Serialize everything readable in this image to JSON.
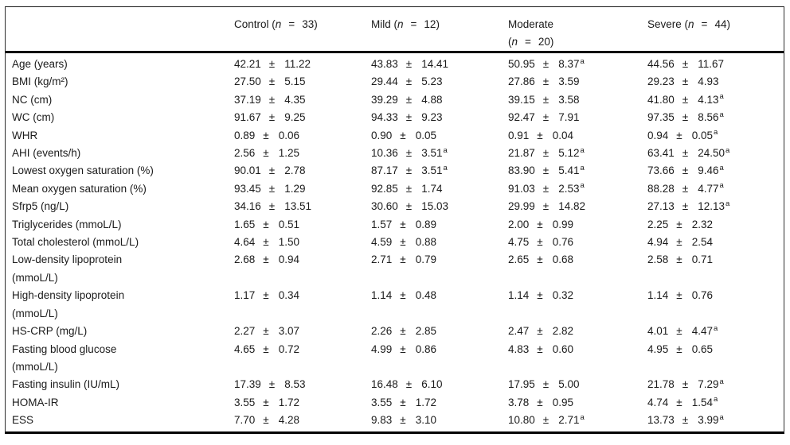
{
  "table": {
    "plus_minus": "±",
    "equals": "=",
    "n_symbol": "n",
    "sig_marker": "a",
    "groups": [
      {
        "name": "Control",
        "n": "33",
        "wrap": false
      },
      {
        "name": "Mild",
        "n": "12",
        "wrap": false
      },
      {
        "name": "Moderate",
        "n": "20",
        "wrap": true
      },
      {
        "name": "Severe",
        "n": "44",
        "wrap": false
      }
    ],
    "rows": [
      {
        "label": [
          "Age (years)"
        ],
        "values": [
          [
            "42.21",
            "11.22",
            0
          ],
          [
            "43.83",
            "14.41",
            0
          ],
          [
            "50.95",
            "8.37",
            1
          ],
          [
            "44.56",
            "11.67",
            0
          ]
        ]
      },
      {
        "label": [
          "BMI (kg/m²)"
        ],
        "values": [
          [
            "27.50",
            "5.15",
            0
          ],
          [
            "29.44",
            "5.23",
            0
          ],
          [
            "27.86",
            "3.59",
            0
          ],
          [
            "29.23",
            "4.93",
            0
          ]
        ]
      },
      {
        "label": [
          "NC (cm)"
        ],
        "values": [
          [
            "37.19",
            "4.35",
            0
          ],
          [
            "39.29",
            "4.88",
            0
          ],
          [
            "39.15",
            "3.58",
            0
          ],
          [
            "41.80",
            "4.13",
            1
          ]
        ]
      },
      {
        "label": [
          "WC (cm)"
        ],
        "values": [
          [
            "91.67",
            "9.25",
            0
          ],
          [
            "94.33",
            "9.23",
            0
          ],
          [
            "92.47",
            "7.91",
            0
          ],
          [
            "97.35",
            "8.56",
            1
          ]
        ]
      },
      {
        "label": [
          "WHR"
        ],
        "values": [
          [
            "0.89",
            "0.06",
            0
          ],
          [
            "0.90",
            "0.05",
            0
          ],
          [
            "0.91",
            "0.04",
            0
          ],
          [
            "0.94",
            "0.05",
            1
          ]
        ]
      },
      {
        "label": [
          "AHI (events/h)"
        ],
        "values": [
          [
            "2.56",
            "1.25",
            0
          ],
          [
            "10.36",
            "3.51",
            1
          ],
          [
            "21.87",
            "5.12",
            1
          ],
          [
            "63.41",
            "24.50",
            1
          ]
        ]
      },
      {
        "label": [
          "Lowest oxygen saturation (%)"
        ],
        "values": [
          [
            "90.01",
            "2.78",
            0
          ],
          [
            "87.17",
            "3.51",
            1
          ],
          [
            "83.90",
            "5.41",
            1
          ],
          [
            "73.66",
            "9.46",
            1
          ]
        ]
      },
      {
        "label": [
          "Mean oxygen saturation (%)"
        ],
        "values": [
          [
            "93.45",
            "1.29",
            0
          ],
          [
            "92.85",
            "1.74",
            0
          ],
          [
            "91.03",
            "2.53",
            1
          ],
          [
            "88.28",
            "4.77",
            1
          ]
        ]
      },
      {
        "label": [
          "Sfrp5 (ng/L)"
        ],
        "values": [
          [
            "34.16",
            "13.51",
            0
          ],
          [
            "30.60",
            "15.03",
            0
          ],
          [
            "29.99",
            "14.82",
            0
          ],
          [
            "27.13",
            "12.13",
            1
          ]
        ]
      },
      {
        "label": [
          "Triglycerides (mmoL/L)"
        ],
        "values": [
          [
            "1.65",
            "0.51",
            0
          ],
          [
            "1.57",
            "0.89",
            0
          ],
          [
            "2.00",
            "0.99",
            0
          ],
          [
            "2.25",
            "2.32",
            0
          ]
        ]
      },
      {
        "label": [
          "Total cholesterol (mmoL/L)"
        ],
        "values": [
          [
            "4.64",
            "1.50",
            0
          ],
          [
            "4.59",
            "0.88",
            0
          ],
          [
            "4.75",
            "0.76",
            0
          ],
          [
            "4.94",
            "2.54",
            0
          ]
        ]
      },
      {
        "label": [
          "Low-density lipoprotein",
          "(mmoL/L)"
        ],
        "values": [
          [
            "2.68",
            "0.94",
            0
          ],
          [
            "2.71",
            "0.79",
            0
          ],
          [
            "2.65",
            "0.68",
            0
          ],
          [
            "2.58",
            "0.71",
            0
          ]
        ]
      },
      {
        "label": [
          "High-density lipoprotein",
          "(mmoL/L)"
        ],
        "values": [
          [
            "1.17",
            "0.34",
            0
          ],
          [
            "1.14",
            "0.48",
            0
          ],
          [
            "1.14",
            "0.32",
            0
          ],
          [
            "1.14",
            "0.76",
            0
          ]
        ]
      },
      {
        "label": [
          "HS-CRP (mg/L)"
        ],
        "values": [
          [
            "2.27",
            "3.07",
            0
          ],
          [
            "2.26",
            "2.85",
            0
          ],
          [
            "2.47",
            "2.82",
            0
          ],
          [
            "4.01",
            "4.47",
            1
          ]
        ]
      },
      {
        "label": [
          "Fasting blood glucose",
          "(mmoL/L)"
        ],
        "values": [
          [
            "4.65",
            "0.72",
            0
          ],
          [
            "4.99",
            "0.86",
            0
          ],
          [
            "4.83",
            "0.60",
            0
          ],
          [
            "4.95",
            "0.65",
            0
          ]
        ]
      },
      {
        "label": [
          "Fasting insulin (IU/mL)"
        ],
        "values": [
          [
            "17.39",
            "8.53",
            0
          ],
          [
            "16.48",
            "6.10",
            0
          ],
          [
            "17.95",
            "5.00",
            0
          ],
          [
            "21.78",
            "7.29",
            1
          ]
        ]
      },
      {
        "label": [
          "HOMA-IR"
        ],
        "values": [
          [
            "3.55",
            "1.72",
            0
          ],
          [
            "3.55",
            "1.72",
            0
          ],
          [
            "3.78",
            "0.95",
            0
          ],
          [
            "4.74",
            "1.54",
            1
          ]
        ]
      },
      {
        "label": [
          "ESS"
        ],
        "values": [
          [
            "7.70",
            "4.28",
            0
          ],
          [
            "9.83",
            "3.10",
            0
          ],
          [
            "10.80",
            "2.71",
            1
          ],
          [
            "13.73",
            "3.99",
            1
          ]
        ]
      }
    ]
  }
}
